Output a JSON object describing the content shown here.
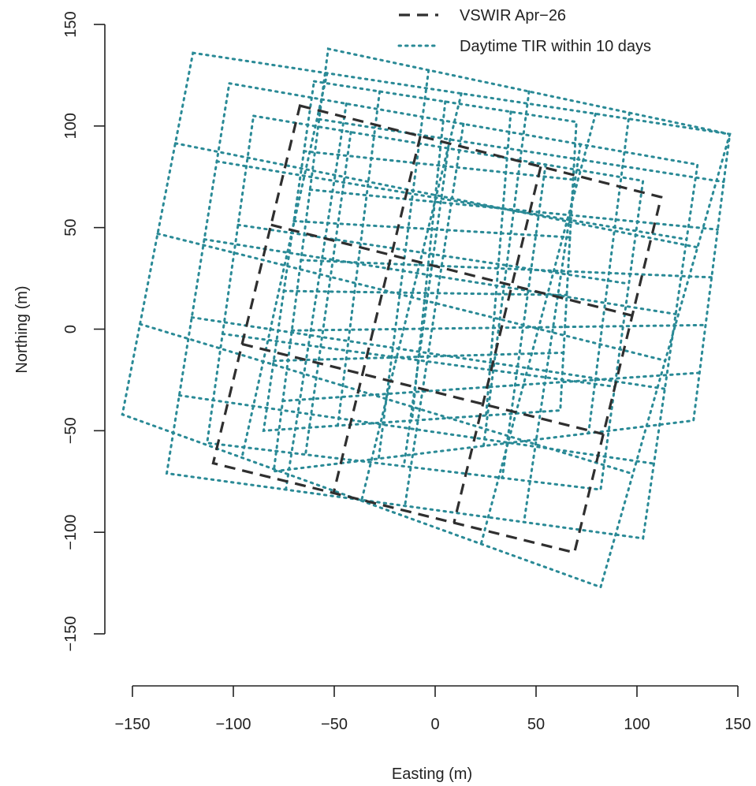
{
  "chart_data": {
    "type": "line",
    "title": "",
    "xlabel": "Easting (m)",
    "ylabel": "Northing (m)",
    "xlim": [
      -150,
      150
    ],
    "ylim": [
      -150,
      150
    ],
    "x_ticks": [
      -150,
      -100,
      -50,
      0,
      50,
      100,
      150
    ],
    "y_ticks": [
      -150,
      -100,
      -50,
      0,
      50,
      100,
      150
    ],
    "x_tick_labels": [
      "−150",
      "−100",
      "−50",
      "0",
      "50",
      "100",
      "150"
    ],
    "y_tick_labels": [
      "−150",
      "−100",
      "−50",
      "0",
      "50",
      "100",
      "150"
    ],
    "legend_position": "top-right",
    "grid": false,
    "colors": {
      "vswir": "#2f2f2f",
      "tir": "#2a8a96"
    },
    "series": [
      {
        "name": "VSWIR Apr−26",
        "style": "dashed",
        "grids": [
          {
            "corners": {
              "tl": [
                -67,
                110
              ],
              "tr": [
                112,
                65
              ],
              "br": [
                69,
                -110
              ],
              "bl": [
                -110,
                -66
              ]
            },
            "cols": 3,
            "rows": 3
          }
        ]
      },
      {
        "name": "Daytime TIR within 10 days",
        "style": "dotted",
        "grids": [
          {
            "corners": {
              "tl": [
                -120,
                136
              ],
              "tr": [
                146,
                96
              ],
              "br": [
                82,
                -127
              ],
              "bl": [
                -155,
                -42
              ]
            },
            "cols": 4,
            "rows": 4
          },
          {
            "corners": {
              "tl": [
                -102,
                121
              ],
              "tr": [
                130,
                81
              ],
              "br": [
                103,
                -103
              ],
              "bl": [
                -133,
                -71
              ]
            },
            "cols": 4,
            "rows": 5
          },
          {
            "corners": {
              "tl": [
                -90,
                105
              ],
              "tr": [
                103,
                73
              ],
              "br": [
                82,
                -79
              ],
              "bl": [
                -113,
                -56
              ]
            },
            "cols": 4,
            "rows": 3
          },
          {
            "corners": {
              "tl": [
                -53,
                138
              ],
              "tr": [
                146,
                96
              ],
              "br": [
                128,
                -45
              ],
              "bl": [
                -80,
                -70
              ]
            },
            "cols": 4,
            "rows": 6
          },
          {
            "corners": {
              "tl": [
                -60,
                122
              ],
              "tr": [
                70,
                102
              ],
              "br": [
                62,
                -40
              ],
              "bl": [
                -85,
                -50
              ]
            },
            "cols": 4,
            "rows": 5
          }
        ]
      }
    ]
  }
}
